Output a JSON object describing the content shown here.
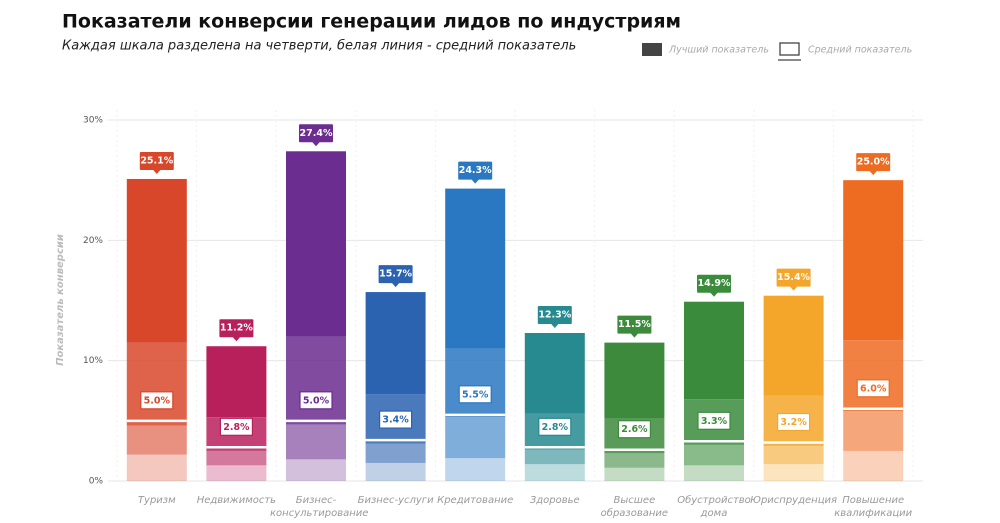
{
  "chart_data": {
    "type": "quartile-bar",
    "title": "Показатели конверсии генерации лидов по индустриям",
    "subtitle": "Каждая шкала разделена на четверти, белая линия - средний показатель",
    "y_label": "Показатель конверсии",
    "legend": {
      "position": "top-right",
      "best": "Лучший показатель",
      "average": "Средний показатель"
    },
    "categories": [
      "Туризм",
      "Недвижимость",
      "Бизнес-консультирование",
      "Бизнес-услуги",
      "Кредитование",
      "Здоровье",
      "Высшее образование",
      "Обустройство дома",
      "Юриспруденция",
      "Повышение квалификации"
    ],
    "colors": [
      "#d9472b",
      "#b8205c",
      "#6b2d8f",
      "#2b63b0",
      "#2a78c2",
      "#268a90",
      "#3d8a3d",
      "#3a8c3c",
      "#f4a62a",
      "#ee6b22"
    ],
    "quartiles": [
      [
        2.2,
        2.4,
        6.9,
        13.6
      ],
      [
        1.3,
        1.2,
        2.8,
        5.9
      ],
      [
        1.8,
        2.9,
        7.3,
        15.4
      ],
      [
        1.5,
        1.6,
        4.1,
        8.5
      ],
      [
        1.9,
        3.4,
        5.7,
        13.3
      ],
      [
        1.4,
        1.2,
        3.0,
        6.7
      ],
      [
        1.1,
        1.2,
        2.9,
        6.3
      ],
      [
        1.3,
        1.7,
        3.8,
        8.1
      ],
      [
        1.4,
        1.5,
        4.2,
        8.3
      ],
      [
        2.5,
        3.3,
        5.9,
        13.3
      ]
    ],
    "best": [
      25.1,
      11.2,
      27.4,
      15.7,
      24.3,
      12.3,
      11.5,
      14.9,
      15.4,
      25.0
    ],
    "best_labels": [
      "25.1%",
      "11.2%",
      "27.4%",
      "15.7%",
      "24.3%",
      "12.3%",
      "11.5%",
      "14.9%",
      "15.4%",
      "25.0%"
    ],
    "average": [
      5.0,
      2.8,
      5.0,
      3.4,
      5.5,
      2.8,
      2.6,
      3.3,
      3.2,
      6.0
    ],
    "average_labels": [
      "5.0%",
      "2.8%",
      "5.0%",
      "3.4%",
      "5.5%",
      "2.8%",
      "2.6%",
      "3.3%",
      "3.2%",
      "6.0%"
    ],
    "ylim": [
      0,
      30
    ],
    "yticks": [
      {
        "value": 0,
        "label": "0%"
      },
      {
        "value": 10,
        "label": "10%"
      },
      {
        "value": 20,
        "label": "20%"
      },
      {
        "value": 30,
        "label": "30%"
      }
    ],
    "grid": true
  }
}
